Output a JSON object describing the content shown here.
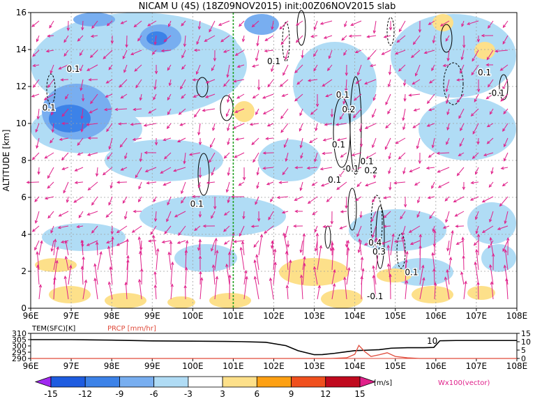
{
  "title": "NICAM U (4S) (18Z09NOV2015) init:00Z06NOV2015 slab",
  "chart_data": [
    {
      "type": "heatmap",
      "title": "NICAM U (4S) (18Z09NOV2015) init:00Z06NOV2015 slab",
      "ylabel": "ALTITUDE [km]",
      "xlim": [
        96,
        108
      ],
      "ylim": [
        0,
        16
      ],
      "x_ticks": [
        "96E",
        "97E",
        "98E",
        "99E",
        "100E",
        "101E",
        "102E",
        "103E",
        "104E",
        "105E",
        "106E",
        "107E",
        "108E"
      ],
      "y_ticks": [
        "0",
        "2",
        "4",
        "6",
        "8",
        "10",
        "12",
        "14",
        "16"
      ],
      "grid": true,
      "marker_line_lon": 101,
      "contour_labels": [
        {
          "text": "0.1",
          "x": 96.45,
          "y": 10.7
        },
        {
          "text": "0.1",
          "x": 97.05,
          "y": 12.8
        },
        {
          "text": "0.1",
          "x": 100.1,
          "y": 5.5
        },
        {
          "text": "0.1",
          "x": 102.0,
          "y": 13.2
        },
        {
          "text": "0.1",
          "x": 103.7,
          "y": 11.4
        },
        {
          "text": "0.2",
          "x": 103.85,
          "y": 10.6
        },
        {
          "text": "0.1",
          "x": 103.6,
          "y": 8.7
        },
        {
          "text": "0.1",
          "x": 103.5,
          "y": 6.8
        },
        {
          "text": "-0.1",
          "x": 103.9,
          "y": 7.4
        },
        {
          "text": "0.1",
          "x": 104.3,
          "y": 7.8
        },
        {
          "text": "0.2",
          "x": 104.4,
          "y": 7.3
        },
        {
          "text": "0.4",
          "x": 104.5,
          "y": 3.4
        },
        {
          "text": "0.3",
          "x": 104.6,
          "y": 2.9
        },
        {
          "text": "0.1",
          "x": 105.4,
          "y": 1.8
        },
        {
          "text": "-0.1",
          "x": 104.5,
          "y": 0.5
        },
        {
          "text": "0.1",
          "x": 107.2,
          "y": 12.6
        },
        {
          "text": "-0.1",
          "x": 107.5,
          "y": 11.5
        }
      ]
    },
    {
      "type": "line",
      "ylabel_left": "TEM(SFC)[K]",
      "ylabel_right": "PRCP [mm/hr]",
      "left_ticks": [
        "290",
        "295",
        "300",
        "305",
        "310"
      ],
      "right_ticks": [
        "0",
        "5",
        "10",
        "15"
      ],
      "ylim_left": [
        290,
        310
      ],
      "ylim_right": [
        0,
        15
      ],
      "x_ticks": [
        "96E",
        "97E",
        "98E",
        "99E",
        "100E",
        "101E",
        "102E",
        "103E",
        "104E",
        "105E",
        "106E",
        "107E",
        "108E"
      ],
      "annotation": "10",
      "series": [
        {
          "color": "#000000",
          "x": [
            96,
            97,
            98,
            99,
            100,
            100.8,
            101.2,
            101.8,
            102.3,
            102.6,
            103.0,
            103.2,
            103.5,
            103.8,
            104.0,
            104.3,
            104.6,
            104.9,
            105.3,
            105.7,
            105.95,
            106.1,
            106.5,
            107,
            108
          ],
          "y": [
            305,
            305,
            304.6,
            304,
            303.8,
            303.6,
            303.4,
            302.9,
            300.2,
            296.2,
            293,
            293.1,
            294.1,
            295.4,
            296.2,
            296.6,
            297,
            298.2,
            298.6,
            298.6,
            298.8,
            304.1,
            304.3,
            304.3,
            304.3
          ]
        },
        {
          "color": "#e04a3a",
          "x": [
            96,
            103.4,
            103.8,
            104.0,
            104.1,
            104.25,
            104.4,
            104.6,
            104.8,
            105.0,
            105.3,
            105.6,
            106,
            108
          ],
          "y": [
            0,
            0,
            0.4,
            2.5,
            7.8,
            4,
            1.2,
            2.2,
            3.4,
            1.2,
            0.4,
            0,
            0,
            0
          ]
        }
      ]
    }
  ],
  "colorbar": {
    "labels": [
      "-15",
      "-12",
      "-9",
      "-6",
      "-3",
      "3",
      "6",
      "9",
      "12",
      "15"
    ],
    "colors": [
      "#a028f0",
      "#1e5ce0",
      "#3c82e8",
      "#78aef0",
      "#b0dcf5",
      "#ffffff",
      "#fde08a",
      "#fda013",
      "#f0501e",
      "#c00a1e",
      "#e0208a"
    ],
    "unit": "[m/s]",
    "vector_note": "Wx100(vector)"
  }
}
